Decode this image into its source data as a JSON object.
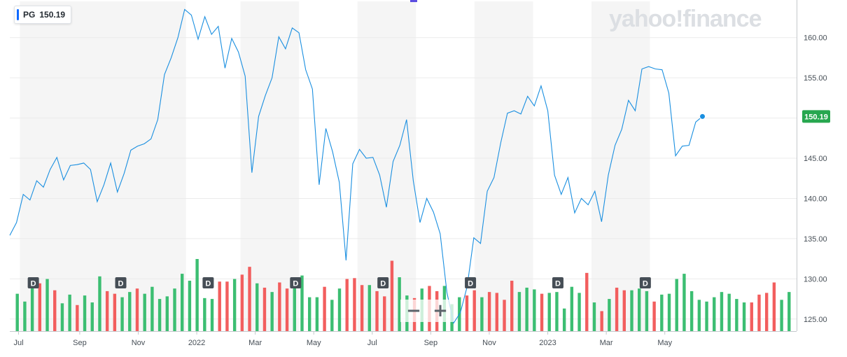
{
  "badge": {
    "symbol": "PG",
    "price": "150.19"
  },
  "logo": "yahoo!finance",
  "zoom": {
    "minus": "−",
    "plus": "+"
  },
  "dividend_marker": "D",
  "chart_data": {
    "type": "line",
    "symbol": "PG",
    "last_price": "150.19",
    "ylim": [
      123.5,
      164.5
    ],
    "yticks": [
      "125.00",
      "130.00",
      "135.00",
      "140.00",
      "145.00",
      "150.00",
      "155.00",
      "160.00"
    ],
    "x_range": [
      0,
      117
    ],
    "xticks": [
      {
        "label": "Jul",
        "x": 1.3
      },
      {
        "label": "Sep",
        "x": 10.4
      },
      {
        "label": "Nov",
        "x": 19.1
      },
      {
        "label": "2022",
        "x": 27.8
      },
      {
        "label": "Mar",
        "x": 36.5
      },
      {
        "label": "May",
        "x": 45.2
      },
      {
        "label": "Jul",
        "x": 53.9
      },
      {
        "label": "Sep",
        "x": 62.6
      },
      {
        "label": "Nov",
        "x": 71.3
      },
      {
        "label": "2023",
        "x": 80.0
      },
      {
        "label": "Mar",
        "x": 88.7
      },
      {
        "label": "May",
        "x": 97.4
      }
    ],
    "shaded_bands": [
      [
        1.5,
        26.2
      ],
      [
        34.3,
        43.0
      ],
      [
        51.7,
        60.4
      ],
      [
        69.1,
        77.8
      ],
      [
        86.5,
        95.2
      ]
    ],
    "dividend_x": [
      3.5,
      16.5,
      29.5,
      42.5,
      55.5,
      68.5,
      81.5,
      94.5
    ],
    "price": [
      135.4,
      137.0,
      140.5,
      139.8,
      142.2,
      141.4,
      143.6,
      145.1,
      142.3,
      144.1,
      144.2,
      144.4,
      143.6,
      139.6,
      141.7,
      144.4,
      140.8,
      143.1,
      146.0,
      146.5,
      146.8,
      147.4,
      149.8,
      155.4,
      157.5,
      160.0,
      163.5,
      162.8,
      159.8,
      162.6,
      160.4,
      161.4,
      156.2,
      159.9,
      158.2,
      155.2,
      143.2,
      150.2,
      152.8,
      155.0,
      160.1,
      158.6,
      161.2,
      160.6,
      156.0,
      153.6,
      141.7,
      148.7,
      145.8,
      142.0,
      132.3,
      144.3,
      146.1,
      145.0,
      145.1,
      142.9,
      138.9,
      144.6,
      146.6,
      149.8,
      142.2,
      137.0,
      140.0,
      138.3,
      135.6,
      128.3,
      124.5,
      125.8,
      129.0,
      135.1,
      134.4,
      140.9,
      142.6,
      146.9,
      150.6,
      150.9,
      150.5,
      152.7,
      151.5,
      154.0,
      150.9,
      142.9,
      140.5,
      142.6,
      138.2,
      140.0,
      139.2,
      140.9,
      137.1,
      142.9,
      146.6,
      148.6,
      152.2,
      150.9,
      156.1,
      156.4,
      156.1,
      156.0,
      153.1,
      145.3,
      146.5,
      146.6,
      149.5,
      150.19
    ],
    "volume": [
      0.43,
      0.34,
      0.5,
      0.55,
      0.6,
      0.47,
      0.32,
      0.42,
      0.3,
      0.41,
      0.33,
      0.63,
      0.46,
      0.43,
      0.39,
      0.45,
      0.49,
      0.43,
      0.51,
      0.37,
      0.4,
      0.49,
      0.66,
      0.58,
      0.83,
      0.38,
      0.37,
      0.57,
      0.57,
      0.6,
      0.65,
      0.74,
      0.55,
      0.5,
      0.45,
      0.56,
      0.49,
      0.54,
      0.64,
      0.39,
      0.39,
      0.51,
      0.36,
      0.49,
      0.6,
      0.61,
      0.53,
      0.53,
      0.46,
      0.4,
      0.81,
      0.62,
      0.41,
      0.38,
      0.49,
      0.52,
      0.46,
      0.52,
      0.31,
      0.39,
      0.41,
      0.47,
      0.39,
      0.45,
      0.44,
      0.36,
      0.58,
      0.45,
      0.5,
      0.48,
      0.43,
      0.44,
      0.45,
      0.26,
      0.51,
      0.44,
      0.67,
      0.33,
      0.23,
      0.37,
      0.5,
      0.47,
      0.47,
      0.49,
      0.46,
      0.34,
      0.42,
      0.43,
      0.6,
      0.66,
      0.46,
      0.36,
      0.34,
      0.39,
      0.45,
      0.43,
      0.37,
      0.33,
      0.33,
      0.42,
      0.44,
      0.56,
      0.36,
      0.45
    ],
    "volume_up": [
      1,
      1,
      1,
      0,
      1,
      0,
      1,
      1,
      0,
      1,
      1,
      1,
      0,
      0,
      1,
      1,
      0,
      1,
      1,
      1,
      1,
      1,
      1,
      1,
      1,
      1,
      1,
      0,
      0,
      1,
      0,
      0,
      1,
      0,
      1,
      0,
      0,
      1,
      1,
      1,
      1,
      0,
      1,
      1,
      0,
      0,
      0,
      1,
      0,
      0,
      0,
      1,
      1,
      0,
      1,
      0,
      0,
      1,
      1,
      1,
      0,
      0,
      1,
      0,
      0,
      0,
      0,
      1,
      1,
      1,
      0,
      1,
      1,
      1,
      1,
      1,
      0,
      1,
      0,
      1,
      0,
      0,
      1,
      1,
      1,
      0,
      1,
      1,
      1,
      1,
      1,
      1,
      1,
      1,
      1,
      1,
      1,
      1,
      0,
      0,
      0,
      0,
      1,
      1
    ]
  }
}
